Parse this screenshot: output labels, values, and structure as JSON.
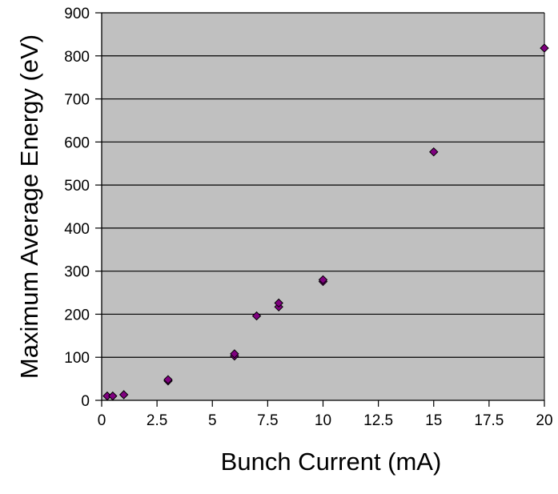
{
  "chart_data": {
    "type": "scatter",
    "title": "",
    "xlabel": "Bunch Current (mA)",
    "ylabel": "Maximum Average Energy (eV)",
    "xlim": [
      0,
      20
    ],
    "ylim": [
      0,
      900
    ],
    "xticks": [
      0,
      2.5,
      5,
      7.5,
      10,
      12.5,
      15,
      17.5,
      20
    ],
    "xtick_labels": [
      "0",
      "2.5",
      "5",
      "7.5",
      "10",
      "12.5",
      "15",
      "17.5",
      "20"
    ],
    "yticks": [
      0,
      100,
      200,
      300,
      400,
      500,
      600,
      700,
      800,
      900
    ],
    "ytick_labels": [
      "0",
      "100",
      "200",
      "300",
      "400",
      "500",
      "600",
      "700",
      "800",
      "900"
    ],
    "grid": "horizontal",
    "legend": "none",
    "plot_background": "#c0c0c0",
    "marker": "diamond",
    "marker_color": "#800080",
    "series": [
      {
        "points": [
          [
            0.25,
            10
          ],
          [
            0.5,
            10
          ],
          [
            1,
            13
          ],
          [
            3,
            45
          ],
          [
            3,
            48
          ],
          [
            6,
            103
          ],
          [
            6,
            108
          ],
          [
            7,
            196
          ],
          [
            8,
            217
          ],
          [
            8,
            226
          ],
          [
            10,
            276
          ],
          [
            10,
            280
          ],
          [
            15,
            577
          ],
          [
            20,
            818
          ]
        ]
      }
    ]
  }
}
